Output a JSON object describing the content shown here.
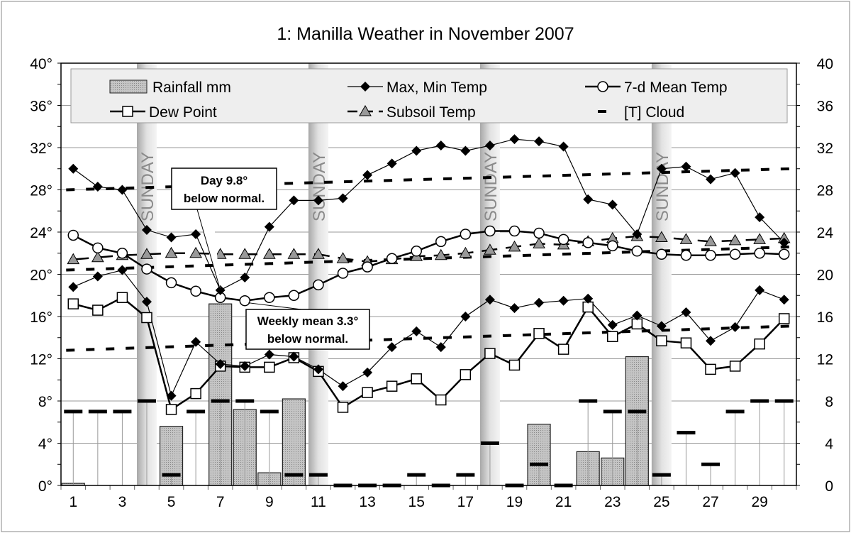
{
  "chart_data": {
    "type": "line",
    "title": "1: Manilla Weather in November 2007",
    "x": [
      1,
      2,
      3,
      4,
      5,
      6,
      7,
      8,
      9,
      10,
      11,
      12,
      13,
      14,
      15,
      16,
      17,
      18,
      19,
      20,
      21,
      22,
      23,
      24,
      25,
      26,
      27,
      28,
      29,
      30
    ],
    "x_ticks": [
      "1",
      "3",
      "5",
      "7",
      "9",
      "11",
      "13",
      "15",
      "17",
      "19",
      "21",
      "23",
      "25",
      "27",
      "29"
    ],
    "y_left_ticks": [
      "0°",
      "4°",
      "8°",
      "12°",
      "16°",
      "20°",
      "24°",
      "28°",
      "32°",
      "36°",
      "40°"
    ],
    "y_right_ticks": [
      "0",
      "4",
      "8",
      "12",
      "16",
      "20",
      "24",
      "28",
      "32",
      "36",
      "40"
    ],
    "ylim": [
      0,
      40
    ],
    "grid": true,
    "legend_position": "top",
    "series": [
      {
        "name": "Rainfall mm",
        "kind": "bar",
        "values": [
          0.2,
          0,
          0,
          0,
          5.6,
          0,
          17.2,
          7.2,
          1.2,
          8.2,
          0,
          0,
          0,
          0,
          0,
          0,
          0,
          0,
          0,
          5.8,
          0,
          3.2,
          2.6,
          12.2,
          0,
          0,
          0,
          0,
          0,
          0
        ]
      },
      {
        "name": "Max, Min Temp",
        "kind": "max",
        "values": [
          30.0,
          28.3,
          28.0,
          24.2,
          23.5,
          23.8,
          18.5,
          19.7,
          24.5,
          27.0,
          27.0,
          27.2,
          29.4,
          30.5,
          31.7,
          32.2,
          31.7,
          32.2,
          32.8,
          32.6,
          32.1,
          27.1,
          26.6,
          23.8,
          30.0,
          30.2,
          29.0,
          29.6,
          25.4,
          23.0
        ]
      },
      {
        "name": "Max, Min Temp",
        "kind": "min",
        "values": [
          18.8,
          19.8,
          20.4,
          17.4,
          8.5,
          13.6,
          11.5,
          11.3,
          12.4,
          12.2,
          11.0,
          9.4,
          10.7,
          13.1,
          14.6,
          13.1,
          16.0,
          17.6,
          16.8,
          17.3,
          17.5,
          17.7,
          15.2,
          16.1,
          15.1,
          16.4,
          13.7,
          15.0,
          18.5,
          17.6
        ]
      },
      {
        "name": "7-d Mean Temp",
        "kind": "mean",
        "values": [
          23.7,
          22.5,
          22.0,
          20.5,
          19.2,
          18.4,
          17.8,
          17.5,
          17.8,
          18.0,
          19.0,
          20.1,
          20.7,
          21.5,
          22.2,
          23.1,
          23.8,
          24.1,
          24.1,
          23.9,
          23.3,
          23.0,
          22.7,
          22.2,
          21.9,
          21.8,
          21.8,
          21.9,
          22.0,
          21.9
        ]
      },
      {
        "name": "Dew Point",
        "kind": "dew",
        "values": [
          17.2,
          16.6,
          17.8,
          15.9,
          7.2,
          8.7,
          11.3,
          11.2,
          11.2,
          12.1,
          10.8,
          7.4,
          8.8,
          9.4,
          10.1,
          8.1,
          10.5,
          12.5,
          11.4,
          14.4,
          12.9,
          16.9,
          14.1,
          15.3,
          13.7,
          13.5,
          11.0,
          11.3,
          13.4,
          15.8
        ]
      },
      {
        "name": "Subsoil Temp",
        "kind": "subsoil",
        "values": [
          21.4,
          21.6,
          21.8,
          21.9,
          22.0,
          22.0,
          21.9,
          21.9,
          21.9,
          21.9,
          21.9,
          21.5,
          21.2,
          21.4,
          21.7,
          21.8,
          22.0,
          22.3,
          22.6,
          22.9,
          22.8,
          23.1,
          23.4,
          23.6,
          23.5,
          23.3,
          23.1,
          23.2,
          23.3,
          23.4
        ]
      },
      {
        "name": "[T] Cloud",
        "kind": "cloud",
        "values": [
          7,
          7,
          7,
          8,
          1,
          7,
          8,
          8,
          7,
          1,
          1,
          0,
          0,
          0,
          1,
          0,
          1,
          4,
          0,
          2,
          0,
          8,
          7,
          7,
          1,
          5,
          2,
          7,
          8,
          8
        ]
      }
    ],
    "normals": {
      "max": [
        28.0,
        30.0
      ],
      "mean": [
        20.4,
        22.6
      ],
      "min": [
        12.8,
        15.1
      ]
    },
    "sundays": [
      4,
      11,
      18,
      25
    ],
    "sunday_label": "SUNDAY",
    "annotations": [
      {
        "line1": "Day 9.8°",
        "line2": "below normal.",
        "day": 7,
        "value": 18.5
      },
      {
        "line1": "Weekly mean 3.3°",
        "line2": "below normal.",
        "day": 8,
        "value": 17.5
      }
    ],
    "colors": {
      "bar": "#b8b8b8",
      "subsoil": "#999999",
      "sunday": "#c8c8c8",
      "legend_bg": "#eeeeee"
    }
  }
}
